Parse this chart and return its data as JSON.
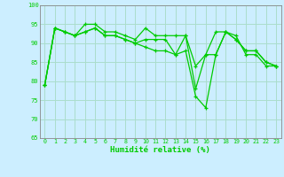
{
  "xlabel": "Humidité relative (%)",
  "background_color": "#cceeff",
  "grid_color": "#aaddcc",
  "line_color": "#00cc00",
  "xlim_min": -0.5,
  "xlim_max": 23.5,
  "ylim": [
    65,
    100
  ],
  "yticks": [
    65,
    70,
    75,
    80,
    85,
    90,
    95,
    100
  ],
  "xticks": [
    0,
    1,
    2,
    3,
    4,
    5,
    6,
    7,
    8,
    9,
    10,
    11,
    12,
    13,
    14,
    15,
    16,
    17,
    18,
    19,
    20,
    21,
    22,
    23
  ],
  "series": [
    [
      79,
      94,
      93,
      92,
      95,
      95,
      93,
      93,
      92,
      91,
      94,
      92,
      92,
      92,
      92,
      84,
      87,
      93,
      93,
      92,
      87,
      87,
      84,
      84
    ],
    [
      79,
      94,
      93,
      92,
      93,
      94,
      92,
      92,
      91,
      90,
      91,
      91,
      91,
      87,
      92,
      78,
      87,
      87,
      93,
      91,
      88,
      88,
      85,
      84
    ],
    [
      79,
      94,
      93,
      92,
      93,
      94,
      92,
      92,
      91,
      90,
      89,
      88,
      88,
      87,
      88,
      76,
      73,
      87,
      93,
      91,
      88,
      88,
      85,
      84
    ]
  ]
}
